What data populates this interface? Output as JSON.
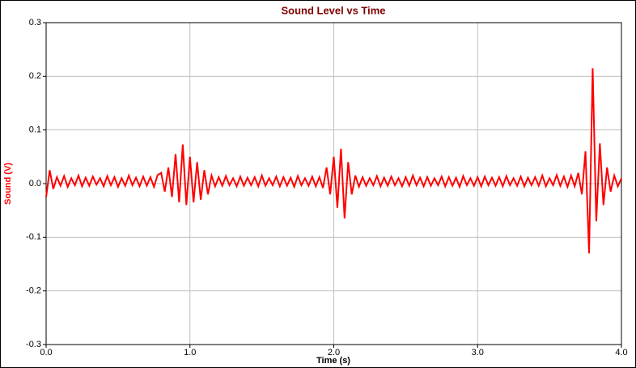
{
  "chart_data": {
    "type": "line",
    "title": "Sound Level vs Time",
    "xlabel": "Time (s)",
    "ylabel": "Sound (V)",
    "color": "#ff0000",
    "grid": true,
    "xlim": [
      0,
      4.0
    ],
    "ylim": [
      -0.3,
      0.3
    ],
    "xticks": [
      {
        "value": 0,
        "label": "0.0"
      },
      {
        "value": 1,
        "label": "1.0"
      },
      {
        "value": 2,
        "label": "2.0"
      },
      {
        "value": 3,
        "label": "3.0"
      },
      {
        "value": 4,
        "label": "4.0"
      }
    ],
    "yticks": [
      -0.3,
      -0.2,
      -0.1,
      {
        "value": 0,
        "label": "0.0"
      },
      0.1,
      0.2,
      0.3
    ],
    "x": [
      0,
      0.025,
      0.05,
      0.075,
      0.1,
      0.125,
      0.15,
      0.175,
      0.2,
      0.225,
      0.25,
      0.275,
      0.3,
      0.325,
      0.35,
      0.375,
      0.4,
      0.425,
      0.45,
      0.475,
      0.5,
      0.525,
      0.55,
      0.575,
      0.6,
      0.625,
      0.65,
      0.675,
      0.7,
      0.725,
      0.75,
      0.775,
      0.8,
      0.825,
      0.85,
      0.875,
      0.9,
      0.925,
      0.95,
      0.975,
      1.0,
      1.025,
      1.05,
      1.075,
      1.1,
      1.125,
      1.15,
      1.175,
      1.2,
      1.225,
      1.25,
      1.275,
      1.3,
      1.325,
      1.35,
      1.375,
      1.4,
      1.425,
      1.45,
      1.475,
      1.5,
      1.525,
      1.55,
      1.575,
      1.6,
      1.625,
      1.65,
      1.675,
      1.7,
      1.725,
      1.75,
      1.775,
      1.8,
      1.825,
      1.85,
      1.875,
      1.9,
      1.925,
      1.95,
      1.975,
      2.0,
      2.025,
      2.05,
      2.075,
      2.1,
      2.125,
      2.15,
      2.175,
      2.2,
      2.225,
      2.25,
      2.275,
      2.3,
      2.325,
      2.35,
      2.375,
      2.4,
      2.425,
      2.45,
      2.475,
      2.5,
      2.525,
      2.55,
      2.575,
      2.6,
      2.625,
      2.65,
      2.675,
      2.7,
      2.725,
      2.75,
      2.775,
      2.8,
      2.825,
      2.85,
      2.875,
      2.9,
      2.925,
      2.95,
      2.975,
      3.0,
      3.025,
      3.05,
      3.075,
      3.1,
      3.125,
      3.15,
      3.175,
      3.2,
      3.225,
      3.25,
      3.275,
      3.3,
      3.325,
      3.35,
      3.375,
      3.4,
      3.425,
      3.45,
      3.475,
      3.5,
      3.525,
      3.55,
      3.575,
      3.6,
      3.625,
      3.65,
      3.675,
      3.7,
      3.725,
      3.75,
      3.775,
      3.8,
      3.825,
      3.85,
      3.875,
      3.9,
      3.925,
      3.95,
      3.975,
      4.0
    ],
    "values": [
      -0.025,
      0.025,
      -0.01,
      0.012,
      -0.004,
      0.014,
      -0.006,
      0.01,
      -0.003,
      0.015,
      -0.005,
      0.011,
      -0.004,
      0.013,
      -0.002,
      0.01,
      -0.005,
      0.014,
      -0.003,
      0.012,
      -0.006,
      0.01,
      -0.004,
      0.015,
      -0.003,
      0.011,
      -0.005,
      0.013,
      -0.004,
      0.012,
      -0.006,
      0.016,
      0.02,
      -0.015,
      0.03,
      -0.025,
      0.055,
      -0.035,
      0.073,
      -0.04,
      0.05,
      -0.035,
      0.04,
      -0.03,
      0.025,
      -0.02,
      0.015,
      -0.005,
      0.012,
      -0.004,
      0.014,
      -0.003,
      0.01,
      -0.005,
      0.013,
      -0.004,
      0.011,
      -0.003,
      0.012,
      -0.005,
      0.015,
      -0.004,
      0.01,
      -0.003,
      0.013,
      -0.005,
      0.012,
      -0.004,
      0.011,
      -0.006,
      0.014,
      -0.003,
      0.01,
      -0.004,
      0.013,
      -0.005,
      0.012,
      -0.008,
      0.03,
      -0.02,
      0.05,
      -0.045,
      0.065,
      -0.065,
      0.04,
      -0.02,
      0.015,
      -0.006,
      0.012,
      -0.004,
      0.01,
      -0.003,
      0.014,
      -0.005,
      0.011,
      -0.004,
      0.013,
      -0.003,
      0.01,
      -0.005,
      0.012,
      -0.004,
      0.015,
      -0.003,
      0.011,
      -0.005,
      0.012,
      -0.004,
      0.01,
      -0.003,
      0.013,
      -0.005,
      0.012,
      -0.004,
      0.011,
      -0.006,
      0.014,
      -0.003,
      0.01,
      -0.004,
      0.012,
      -0.005,
      0.013,
      -0.003,
      0.011,
      -0.004,
      0.012,
      -0.005,
      0.014,
      -0.003,
      0.01,
      -0.004,
      0.013,
      -0.005,
      0.011,
      -0.003,
      0.012,
      -0.004,
      0.015,
      -0.005,
      0.01,
      -0.003,
      0.016,
      -0.004,
      0.013,
      -0.006,
      0.015,
      -0.005,
      0.02,
      -0.02,
      0.06,
      -0.13,
      0.215,
      -0.07,
      0.075,
      -0.04,
      0.03,
      -0.015,
      0.015,
      -0.005,
      0.01
    ]
  }
}
